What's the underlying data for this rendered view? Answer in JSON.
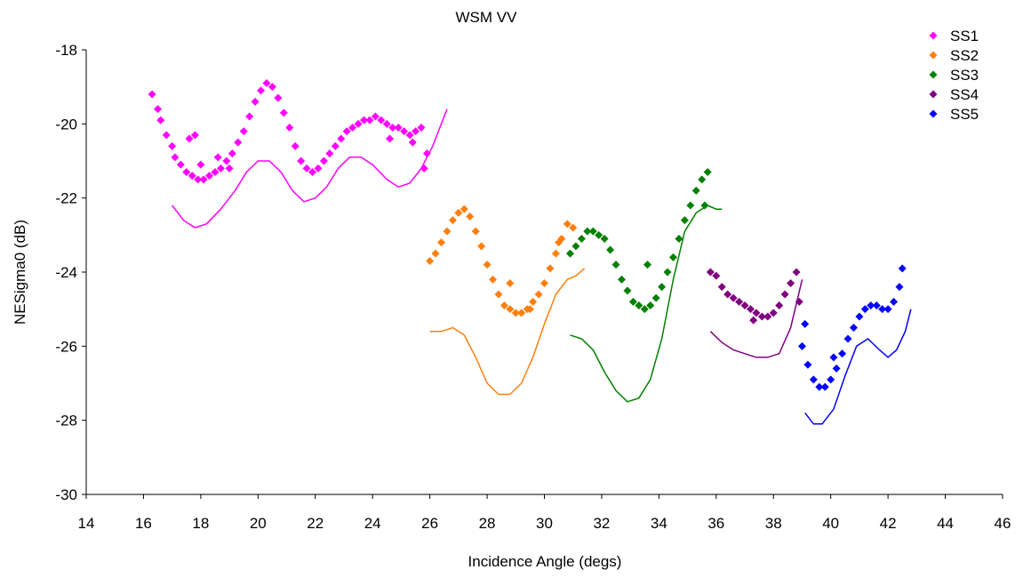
{
  "chart_data": {
    "type": "scatter",
    "title": "WSM VV",
    "xlabel": "Incidence Angle (degs)",
    "ylabel": "NESigma0 (dB)",
    "xlim": [
      14,
      46
    ],
    "ylim": [
      -30,
      -18
    ],
    "xticks": [
      "14",
      "16",
      "18",
      "20",
      "22",
      "24",
      "26",
      "28",
      "30",
      "32",
      "34",
      "36",
      "38",
      "40",
      "42",
      "44",
      "46"
    ],
    "yticks": [
      "-18",
      "-20",
      "-22",
      "-24",
      "-26",
      "-28",
      "-30"
    ],
    "grid": false,
    "legend_position": "top-right",
    "series": [
      {
        "name": "SS1",
        "color": "#ff00ff",
        "points": [
          [
            16.3,
            -19.2
          ],
          [
            16.5,
            -19.6
          ],
          [
            16.6,
            -19.9
          ],
          [
            16.8,
            -20.3
          ],
          [
            17.0,
            -20.6
          ],
          [
            17.1,
            -20.9
          ],
          [
            17.3,
            -21.1
          ],
          [
            17.5,
            -21.3
          ],
          [
            17.7,
            -21.4
          ],
          [
            17.9,
            -21.5
          ],
          [
            18.1,
            -21.5
          ],
          [
            18.3,
            -21.4
          ],
          [
            18.5,
            -21.3
          ],
          [
            18.7,
            -21.2
          ],
          [
            18.9,
            -21.0
          ],
          [
            19.1,
            -20.8
          ],
          [
            19.3,
            -20.5
          ],
          [
            19.5,
            -20.2
          ],
          [
            19.7,
            -19.8
          ],
          [
            19.9,
            -19.4
          ],
          [
            20.1,
            -19.1
          ],
          [
            20.3,
            -18.9
          ],
          [
            20.5,
            -19.0
          ],
          [
            20.7,
            -19.3
          ],
          [
            20.9,
            -19.7
          ],
          [
            21.1,
            -20.1
          ],
          [
            21.3,
            -20.6
          ],
          [
            21.5,
            -21.0
          ],
          [
            21.7,
            -21.2
          ],
          [
            21.9,
            -21.3
          ],
          [
            22.1,
            -21.2
          ],
          [
            22.3,
            -21.0
          ],
          [
            22.5,
            -20.8
          ],
          [
            22.7,
            -20.6
          ],
          [
            22.9,
            -20.4
          ],
          [
            23.1,
            -20.2
          ],
          [
            23.3,
            -20.1
          ],
          [
            23.5,
            -20.0
          ],
          [
            23.7,
            -19.9
          ],
          [
            23.9,
            -19.9
          ],
          [
            24.1,
            -19.8
          ],
          [
            24.3,
            -19.9
          ],
          [
            24.5,
            -20.0
          ],
          [
            24.7,
            -20.1
          ],
          [
            24.9,
            -20.1
          ],
          [
            25.1,
            -20.2
          ],
          [
            25.3,
            -20.3
          ],
          [
            25.5,
            -20.2
          ],
          [
            25.7,
            -20.1
          ],
          [
            25.9,
            -20.8
          ],
          [
            25.8,
            -21.2
          ],
          [
            17.6,
            -20.4
          ],
          [
            17.8,
            -20.3
          ],
          [
            18.0,
            -21.1
          ],
          [
            18.6,
            -20.9
          ],
          [
            19.0,
            -21.2
          ],
          [
            24.6,
            -20.4
          ],
          [
            25.4,
            -20.5
          ]
        ],
        "model": [
          [
            17.0,
            -22.2
          ],
          [
            17.4,
            -22.6
          ],
          [
            17.8,
            -22.8
          ],
          [
            18.2,
            -22.7
          ],
          [
            18.7,
            -22.3
          ],
          [
            19.2,
            -21.8
          ],
          [
            19.6,
            -21.3
          ],
          [
            20.0,
            -21.0
          ],
          [
            20.4,
            -21.0
          ],
          [
            20.8,
            -21.3
          ],
          [
            21.2,
            -21.8
          ],
          [
            21.6,
            -22.1
          ],
          [
            22.0,
            -22.0
          ],
          [
            22.4,
            -21.7
          ],
          [
            22.8,
            -21.2
          ],
          [
            23.2,
            -20.9
          ],
          [
            23.6,
            -20.9
          ],
          [
            24.0,
            -21.1
          ],
          [
            24.5,
            -21.5
          ],
          [
            24.9,
            -21.7
          ],
          [
            25.3,
            -21.6
          ],
          [
            25.7,
            -21.2
          ],
          [
            26.1,
            -20.6
          ],
          [
            26.6,
            -19.6
          ]
        ]
      },
      {
        "name": "SS2",
        "color": "#ff7f0e",
        "points": [
          [
            26.0,
            -23.7
          ],
          [
            26.2,
            -23.5
          ],
          [
            26.4,
            -23.2
          ],
          [
            26.6,
            -22.9
          ],
          [
            26.8,
            -22.6
          ],
          [
            27.0,
            -22.4
          ],
          [
            27.2,
            -22.3
          ],
          [
            27.4,
            -22.5
          ],
          [
            27.6,
            -22.9
          ],
          [
            27.8,
            -23.3
          ],
          [
            28.0,
            -23.8
          ],
          [
            28.2,
            -24.2
          ],
          [
            28.4,
            -24.6
          ],
          [
            28.6,
            -24.9
          ],
          [
            28.8,
            -25.0
          ],
          [
            29.0,
            -25.1
          ],
          [
            29.2,
            -25.1
          ],
          [
            29.4,
            -25.0
          ],
          [
            29.6,
            -24.8
          ],
          [
            29.8,
            -24.6
          ],
          [
            30.0,
            -24.3
          ],
          [
            30.2,
            -23.9
          ],
          [
            30.4,
            -23.5
          ],
          [
            30.6,
            -23.1
          ],
          [
            30.8,
            -22.7
          ],
          [
            31.0,
            -22.8
          ],
          [
            28.8,
            -24.3
          ],
          [
            29.5,
            -25.0
          ],
          [
            30.5,
            -23.2
          ]
        ],
        "model": [
          [
            26.0,
            -25.6
          ],
          [
            26.4,
            -25.6
          ],
          [
            26.8,
            -25.5
          ],
          [
            27.2,
            -25.7
          ],
          [
            27.6,
            -26.3
          ],
          [
            28.0,
            -27.0
          ],
          [
            28.4,
            -27.3
          ],
          [
            28.8,
            -27.3
          ],
          [
            29.2,
            -27.0
          ],
          [
            29.6,
            -26.3
          ],
          [
            30.0,
            -25.4
          ],
          [
            30.4,
            -24.6
          ],
          [
            30.8,
            -24.2
          ],
          [
            31.1,
            -24.1
          ],
          [
            31.4,
            -23.9
          ]
        ]
      },
      {
        "name": "SS3",
        "color": "#008000",
        "points": [
          [
            30.9,
            -23.5
          ],
          [
            31.1,
            -23.3
          ],
          [
            31.3,
            -23.1
          ],
          [
            31.5,
            -22.9
          ],
          [
            31.7,
            -22.9
          ],
          [
            31.9,
            -23.0
          ],
          [
            32.1,
            -23.1
          ],
          [
            32.3,
            -23.4
          ],
          [
            32.5,
            -23.8
          ],
          [
            32.7,
            -24.2
          ],
          [
            32.9,
            -24.5
          ],
          [
            33.1,
            -24.8
          ],
          [
            33.3,
            -24.9
          ],
          [
            33.5,
            -25.0
          ],
          [
            33.7,
            -24.9
          ],
          [
            33.9,
            -24.7
          ],
          [
            34.1,
            -24.4
          ],
          [
            34.3,
            -24.0
          ],
          [
            34.5,
            -23.6
          ],
          [
            34.7,
            -23.1
          ],
          [
            34.9,
            -22.6
          ],
          [
            35.1,
            -22.2
          ],
          [
            35.3,
            -21.8
          ],
          [
            35.5,
            -21.5
          ],
          [
            35.7,
            -21.3
          ],
          [
            33.6,
            -23.8
          ],
          [
            35.6,
            -22.2
          ]
        ],
        "model": [
          [
            30.9,
            -25.7
          ],
          [
            31.3,
            -25.8
          ],
          [
            31.7,
            -26.1
          ],
          [
            32.1,
            -26.7
          ],
          [
            32.5,
            -27.2
          ],
          [
            32.9,
            -27.5
          ],
          [
            33.3,
            -27.4
          ],
          [
            33.7,
            -26.9
          ],
          [
            34.1,
            -25.8
          ],
          [
            34.5,
            -24.2
          ],
          [
            34.9,
            -22.9
          ],
          [
            35.3,
            -22.4
          ],
          [
            35.7,
            -22.2
          ],
          [
            36.0,
            -22.3
          ],
          [
            36.2,
            -22.3
          ]
        ]
      },
      {
        "name": "SS4",
        "color": "#800080",
        "points": [
          [
            35.8,
            -24.0
          ],
          [
            36.0,
            -24.1
          ],
          [
            36.2,
            -24.4
          ],
          [
            36.4,
            -24.6
          ],
          [
            36.6,
            -24.7
          ],
          [
            36.8,
            -24.8
          ],
          [
            37.0,
            -24.9
          ],
          [
            37.2,
            -25.0
          ],
          [
            37.4,
            -25.1
          ],
          [
            37.6,
            -25.2
          ],
          [
            37.8,
            -25.2
          ],
          [
            38.0,
            -25.1
          ],
          [
            38.2,
            -24.9
          ],
          [
            38.4,
            -24.6
          ],
          [
            38.6,
            -24.3
          ],
          [
            38.8,
            -24.0
          ],
          [
            37.3,
            -25.3
          ],
          [
            38.9,
            -24.8
          ]
        ],
        "model": [
          [
            35.8,
            -25.6
          ],
          [
            36.2,
            -25.9
          ],
          [
            36.6,
            -26.1
          ],
          [
            37.0,
            -26.2
          ],
          [
            37.4,
            -26.3
          ],
          [
            37.8,
            -26.3
          ],
          [
            38.2,
            -26.2
          ],
          [
            38.6,
            -25.5
          ],
          [
            39.0,
            -24.2
          ]
        ]
      },
      {
        "name": "SS5",
        "color": "#0000ff",
        "points": [
          [
            39.0,
            -26.0
          ],
          [
            39.2,
            -26.5
          ],
          [
            39.4,
            -26.9
          ],
          [
            39.6,
            -27.1
          ],
          [
            39.8,
            -27.1
          ],
          [
            40.0,
            -26.9
          ],
          [
            40.2,
            -26.6
          ],
          [
            40.4,
            -26.2
          ],
          [
            40.6,
            -25.8
          ],
          [
            40.8,
            -25.5
          ],
          [
            41.0,
            -25.2
          ],
          [
            41.2,
            -25.0
          ],
          [
            41.4,
            -24.9
          ],
          [
            41.6,
            -24.9
          ],
          [
            41.8,
            -25.0
          ],
          [
            42.0,
            -25.0
          ],
          [
            42.2,
            -24.8
          ],
          [
            42.4,
            -24.4
          ],
          [
            42.5,
            -23.9
          ],
          [
            39.1,
            -25.4
          ],
          [
            40.1,
            -26.3
          ]
        ],
        "model": [
          [
            39.1,
            -27.8
          ],
          [
            39.4,
            -28.1
          ],
          [
            39.7,
            -28.1
          ],
          [
            40.1,
            -27.7
          ],
          [
            40.5,
            -26.8
          ],
          [
            40.9,
            -26.0
          ],
          [
            41.3,
            -25.8
          ],
          [
            41.7,
            -26.1
          ],
          [
            42.0,
            -26.3
          ],
          [
            42.3,
            -26.1
          ],
          [
            42.6,
            -25.6
          ],
          [
            42.8,
            -25.0
          ]
        ]
      }
    ]
  }
}
